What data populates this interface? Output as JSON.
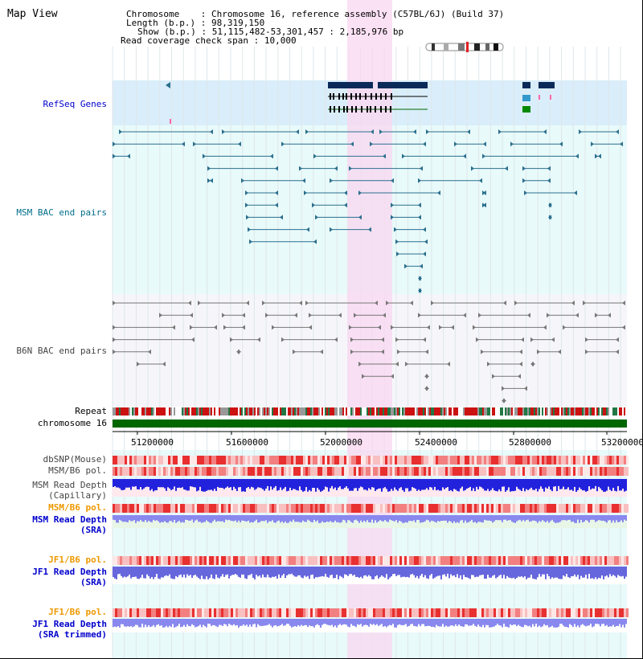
{
  "header": {
    "title": "Map View",
    "info_lines": [
      {
        "key": "Chromosome",
        "value": "Chromosome 16, reference assembly (C57BL/6J) (Build 37)"
      },
      {
        "key": "Length (b.p.)",
        "value": "98,319,150"
      },
      {
        "key": "Show (b.p.)",
        "value": "51,115,482-53,301,457 : 2,185,976 bp"
      },
      {
        "key": "Read coverage check span",
        "value": "10,000"
      }
    ]
  },
  "tracks": {
    "refseq": "RefSeq Genes",
    "msm_bac": "MSM BAC end pairs",
    "b6n_bac": "B6N BAC end pairs",
    "repeat": "Repeat",
    "chromosome": "chromosome 16",
    "dbsnp": "dbSNP(Mouse)",
    "msm_b6_pol": "MSM/B6 pol.",
    "msm_read_depth_cap": "MSM Read Depth",
    "msm_read_depth_cap_sub": "(Capillary)",
    "msm_b6_pol2": "MSM/B6 pol.",
    "msm_read_depth_sra": "MSM Read Depth",
    "msm_read_depth_sra_sub": "(SRA)",
    "jf1_b6_pol": "JF1/B6 pol.",
    "jf1_read_depth_sra": "JF1 Read Depth",
    "jf1_read_depth_sra_sub": "(SRA)",
    "jf1_b6_pol2": "JF1/B6 pol.",
    "jf1_read_depth_trim": "JF1 Read Depth",
    "jf1_read_depth_trim_sub": "(SRA trimmed)"
  },
  "axis": {
    "ticks": [
      "51200000",
      "51600000",
      "52000000",
      "52400000",
      "52800000",
      "53200000"
    ]
  },
  "colors": {
    "refseq_bg": "#d9eefa",
    "msm_bg": "#e8fafa",
    "b6n_bg": "#f6f6fa",
    "highlight": "#f9d7f0",
    "msm_color": "#2b6f8e",
    "refseq_label": "#0000cc",
    "msm_label": "#006e8a",
    "orange_label": "#ee9900",
    "chromosome": "#006600"
  }
}
